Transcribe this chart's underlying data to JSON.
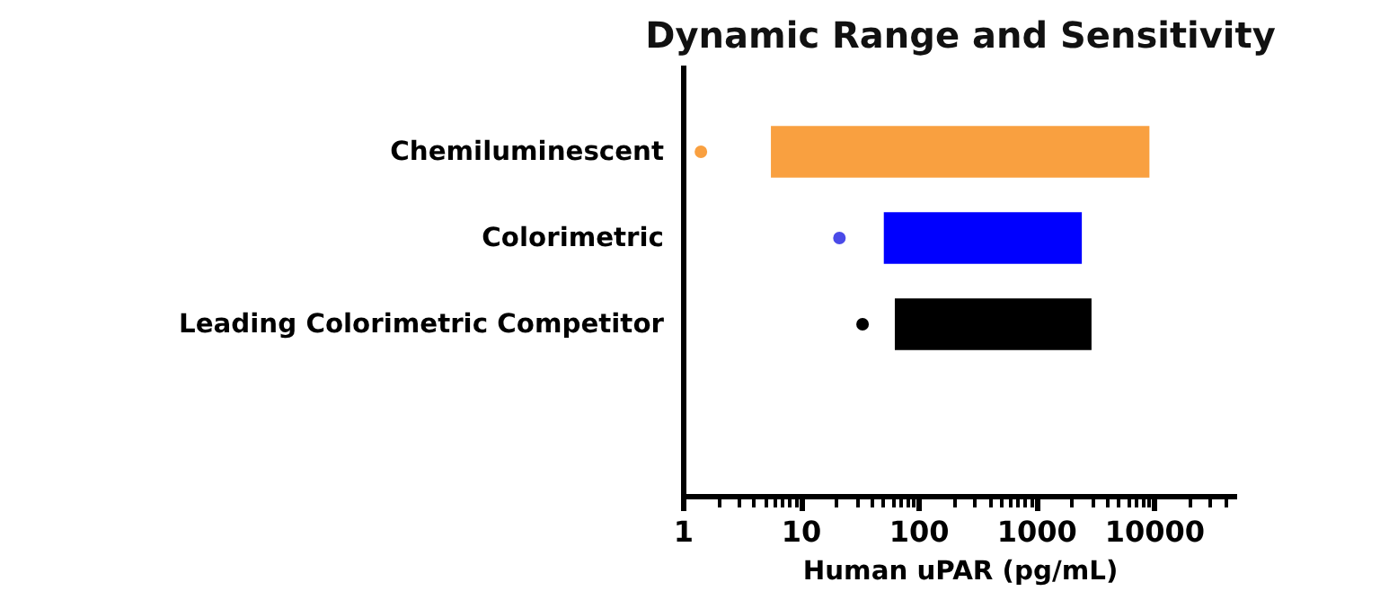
{
  "chart_data": {
    "type": "bar",
    "orientation": "horizontal",
    "title": "Dynamic Range and Sensitivity",
    "xlabel": "Human uPAR (pg/mL)",
    "categories": [
      "Chemiluminescent",
      "Colorimetric",
      "Leading Colorimetric Competitor"
    ],
    "series": [
      {
        "type": "bar",
        "colors": [
          "#f9a040",
          "#0000ff",
          "#000000"
        ],
        "base": [
          5.5,
          50,
          62
        ],
        "values": [
          8994.5,
          2350,
          2838
        ]
      },
      {
        "type": "scatter",
        "colors": [
          "#f9a040",
          "#4a4ae8",
          "#000000"
        ],
        "values": [
          1.4,
          21,
          33
        ]
      }
    ],
    "log": "x",
    "xlim": [
      1,
      50000
    ],
    "xticks": [
      1,
      10,
      100,
      1000,
      10000
    ],
    "grid": false,
    "marker": "circle"
  }
}
